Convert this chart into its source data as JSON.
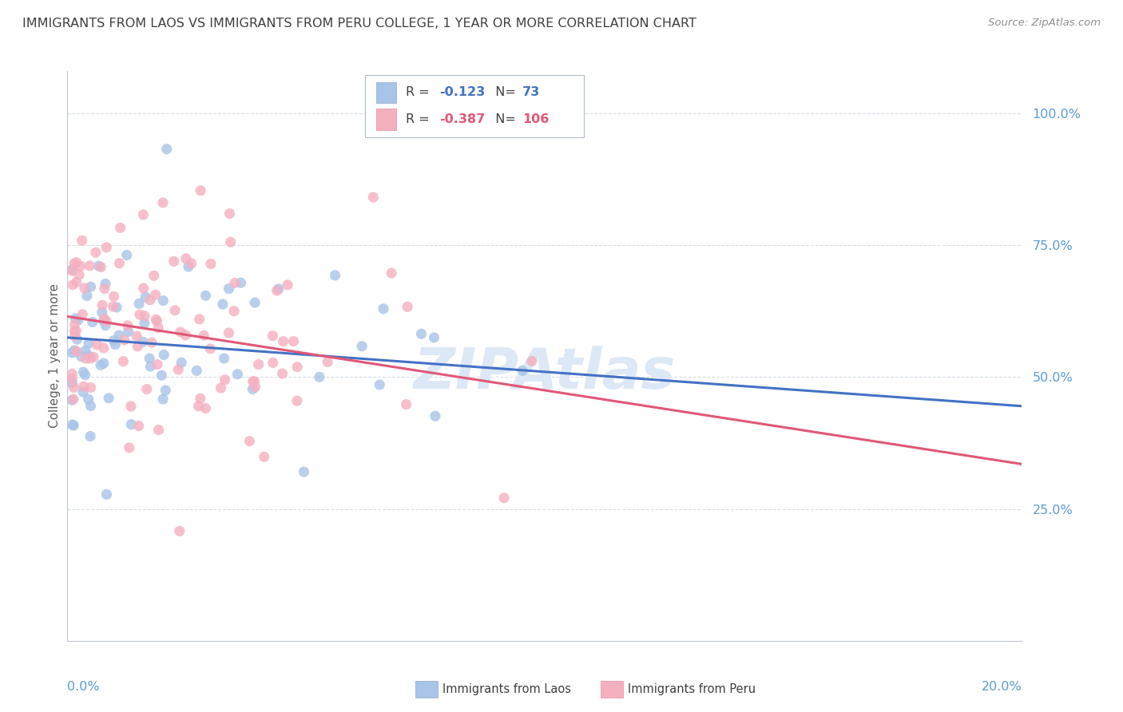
{
  "title": "IMMIGRANTS FROM LAOS VS IMMIGRANTS FROM PERU COLLEGE, 1 YEAR OR MORE CORRELATION CHART",
  "source": "Source: ZipAtlas.com",
  "ylabel": "College, 1 year or more",
  "xmin": 0.0,
  "xmax": 0.2,
  "ymin": 0.0,
  "ymax": 1.08,
  "laos_R": -0.123,
  "laos_N": 73,
  "peru_R": -0.387,
  "peru_N": 106,
  "laos_color": "#a8c4e8",
  "peru_color": "#f5b0c0",
  "laos_line_color": "#4472c4",
  "peru_line_color": "#e05878",
  "watermark_color": "#dce8f5",
  "background_color": "#ffffff",
  "grid_color": "#d8dfe8",
  "title_color": "#404040",
  "axis_label_color": "#5b9bd5",
  "laos_intercept": 0.575,
  "laos_slope": -0.65,
  "peru_intercept": 0.615,
  "peru_slope": -1.4
}
